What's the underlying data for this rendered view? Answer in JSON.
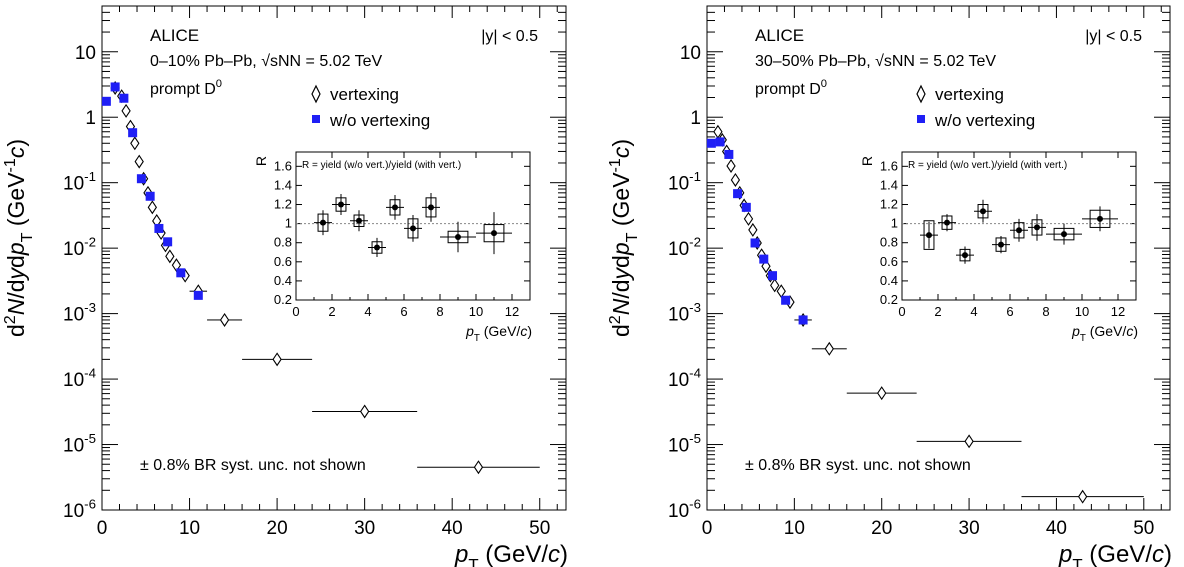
{
  "figure": {
    "axes": {
      "ylabel": "d²N/dydp_T (GeV⁻¹c)",
      "xlabel": "p_T (GeV/c)",
      "xticks": [
        "0",
        "10",
        "20",
        "30",
        "40",
        "50"
      ],
      "yticks": [
        "10",
        "1",
        "10⁻¹",
        "10⁻²",
        "10⁻³",
        "10⁻⁴",
        "10⁻⁵",
        "10⁻⁶"
      ]
    },
    "inset_axes": {
      "ylabel": "R",
      "xlabel": "p_T (GeV/c)",
      "legend_text": "R = yield (w/o vert.)/yield (with vert.)",
      "xticks": [
        "0",
        "2",
        "4",
        "6",
        "8",
        "10",
        "12"
      ],
      "yticks": [
        "0.2",
        "0.4",
        "0.6",
        "0.8",
        "1",
        "1.2",
        "1.4",
        "1.6"
      ]
    },
    "legend": {
      "vertexing": "vertexing",
      "without_vertexing": "w/o vertexing"
    },
    "colors": {
      "vertexing": "#000000",
      "without_vertexing": "#1f1ff5"
    }
  },
  "chart_data": [
    {
      "type": "scatter",
      "title": "ALICE",
      "subtitle": "0–10% Pb–Pb, √sNN = 5.02 TeV",
      "annotations": [
        "|y| < 0.5",
        "prompt D⁰",
        "± 0.8% BR syst. unc. not shown"
      ],
      "xlabel": "p_T (GeV/c)",
      "ylabel": "d²N/dydp_T (GeV⁻¹c)",
      "yscale": "log",
      "xlim": [
        0,
        53
      ],
      "ylim": [
        1e-06,
        50
      ],
      "series": [
        {
          "name": "vertexing",
          "marker": "open-diamond",
          "x": [
            1.5,
            2.25,
            2.75,
            3.25,
            3.75,
            4.25,
            4.75,
            5.25,
            5.75,
            6.25,
            6.75,
            7.25,
            7.75,
            8.5,
            9.5,
            11,
            14,
            20,
            30,
            43
          ],
          "xerr": [
            0.5,
            0.25,
            0.25,
            0.25,
            0.25,
            0.25,
            0.25,
            0.25,
            0.25,
            0.25,
            0.25,
            0.25,
            0.25,
            0.5,
            0.5,
            1,
            2,
            4,
            6,
            7
          ],
          "y": [
            2.8,
            2.1,
            1.25,
            0.72,
            0.4,
            0.21,
            0.115,
            0.07,
            0.042,
            0.026,
            0.017,
            0.011,
            0.0075,
            0.0055,
            0.0038,
            0.0022,
            0.0008,
            0.0002,
            3.2e-05,
            4.5e-06
          ]
        },
        {
          "name": "w/o vertexing",
          "marker": "filled-square",
          "x": [
            0.5,
            1.5,
            2.5,
            3.5,
            4.5,
            5.5,
            6.5,
            7.5,
            9,
            11
          ],
          "y": [
            1.75,
            2.9,
            1.95,
            0.58,
            0.115,
            0.062,
            0.02,
            0.0125,
            0.0042,
            0.0019
          ]
        }
      ],
      "inset": {
        "type": "scatter",
        "xlabel": "p_T (GeV/c)",
        "ylabel": "R",
        "xlim": [
          0,
          13
        ],
        "ylim": [
          0.2,
          1.75
        ],
        "reference_line": 1,
        "x": [
          1.5,
          2.5,
          3.5,
          4.5,
          5.5,
          6.5,
          7.5,
          9,
          11
        ],
        "xerr": [
          0.5,
          0.5,
          0.5,
          0.5,
          0.5,
          0.5,
          0.5,
          1,
          1
        ],
        "y": [
          1.01,
          1.2,
          1.03,
          0.75,
          1.17,
          0.95,
          1.17,
          0.86,
          0.9
        ],
        "yerr": [
          0.13,
          0.11,
          0.11,
          0.1,
          0.13,
          0.14,
          0.15,
          0.16,
          0.22
        ],
        "syst": [
          0.09,
          0.07,
          0.06,
          0.06,
          0.08,
          0.1,
          0.1,
          0.06,
          0.09
        ]
      }
    },
    {
      "type": "scatter",
      "title": "ALICE",
      "subtitle": "30–50% Pb–Pb, √sNN = 5.02 TeV",
      "annotations": [
        "|y| < 0.5",
        "prompt D⁰",
        "± 0.8% BR syst. unc. not shown"
      ],
      "xlabel": "p_T (GeV/c)",
      "ylabel": "d²N/dydp_T (GeV⁻¹c)",
      "yscale": "log",
      "xlim": [
        0,
        53
      ],
      "ylim": [
        1e-06,
        50
      ],
      "series": [
        {
          "name": "vertexing",
          "marker": "open-diamond",
          "x": [
            1.25,
            1.75,
            2.25,
            2.75,
            3.25,
            3.75,
            4.25,
            4.75,
            5.25,
            5.75,
            6.25,
            6.75,
            7.25,
            7.75,
            8.5,
            9.5,
            11,
            14,
            20,
            30,
            43
          ],
          "xerr": [
            0.25,
            0.25,
            0.25,
            0.25,
            0.25,
            0.25,
            0.25,
            0.25,
            0.25,
            0.25,
            0.25,
            0.25,
            0.25,
            0.25,
            0.5,
            0.5,
            1,
            2,
            4,
            6,
            7
          ],
          "y": [
            0.6,
            0.45,
            0.3,
            0.18,
            0.11,
            0.07,
            0.045,
            0.028,
            0.019,
            0.012,
            0.0078,
            0.0053,
            0.0038,
            0.0027,
            0.0022,
            0.0015,
            0.0008,
            0.00029,
            6.1e-05,
            1.12e-05,
            1.6e-06
          ]
        },
        {
          "name": "w/o vertexing",
          "marker": "filled-square",
          "x": [
            0.5,
            1.5,
            2.5,
            3.5,
            4.5,
            5.5,
            6.5,
            7.5,
            9,
            11
          ],
          "y": [
            0.4,
            0.42,
            0.27,
            0.068,
            0.042,
            0.012,
            0.0068,
            0.0038,
            0.0016,
            0.0008
          ]
        }
      ],
      "inset": {
        "type": "scatter",
        "xlabel": "p_T (GeV/c)",
        "ylabel": "R",
        "xlim": [
          0,
          13
        ],
        "ylim": [
          0.2,
          1.75
        ],
        "reference_line": 1,
        "x": [
          1.5,
          2.5,
          3.5,
          4.5,
          5.5,
          6.5,
          7.5,
          9,
          11
        ],
        "xerr": [
          0.5,
          0.5,
          0.5,
          0.5,
          0.5,
          0.5,
          0.5,
          1,
          1
        ],
        "y": [
          0.88,
          1.01,
          0.67,
          1.13,
          0.78,
          0.93,
          0.96,
          0.89,
          1.05
        ],
        "yerr": [
          0.14,
          0.09,
          0.09,
          0.12,
          0.09,
          0.12,
          0.14,
          0.11,
          0.13
        ],
        "syst": [
          0.15,
          0.07,
          0.06,
          0.07,
          0.07,
          0.08,
          0.08,
          0.06,
          0.09
        ]
      }
    }
  ]
}
